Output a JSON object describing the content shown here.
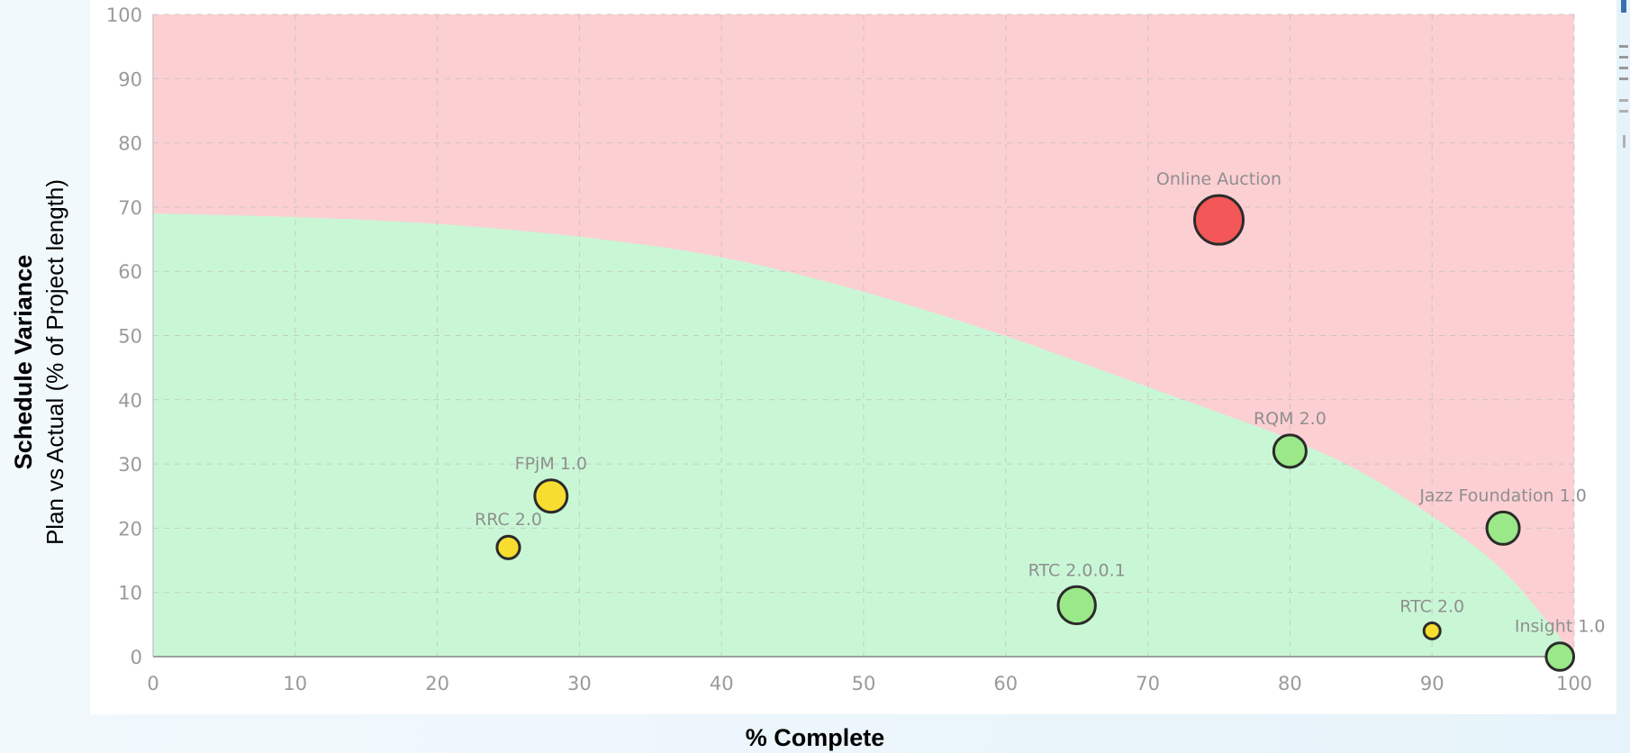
{
  "chart_data": {
    "type": "scatter",
    "title": "",
    "xlabel": "% Complete",
    "ylabel_bold": "Schedule Variance",
    "ylabel": "Plan vs Actual (% of Project length)",
    "xlim": [
      0,
      100
    ],
    "ylim": [
      0,
      100
    ],
    "xticks": [
      "0",
      "10",
      "20",
      "30",
      "40",
      "50",
      "60",
      "70",
      "80",
      "90",
      "100"
    ],
    "yticks": [
      "0",
      "10",
      "20",
      "30",
      "40",
      "50",
      "60",
      "70",
      "80",
      "90",
      "100"
    ],
    "grid": true,
    "zones": {
      "danger_color": "#fccfd3",
      "safe_color": "#c9f7d6",
      "boundary": [
        [
          0,
          69
        ],
        [
          10,
          68.5
        ],
        [
          20,
          67.5
        ],
        [
          30,
          65.5
        ],
        [
          40,
          62.5
        ],
        [
          50,
          57
        ],
        [
          60,
          50
        ],
        [
          65,
          46
        ],
        [
          70,
          42
        ],
        [
          75,
          38
        ],
        [
          80,
          34
        ],
        [
          85,
          29
        ],
        [
          90,
          22
        ],
        [
          95,
          14
        ],
        [
          99,
          3
        ]
      ]
    },
    "points": [
      {
        "label": "Online Auction",
        "x": 75,
        "y": 68,
        "size": 3,
        "color": "#f35757"
      },
      {
        "label": "RQM 2.0",
        "x": 80,
        "y": 32,
        "size": 2,
        "color": "#9ae888"
      },
      {
        "label": "Jazz Foundation 1.0",
        "x": 95,
        "y": 20,
        "size": 2,
        "color": "#9ae888"
      },
      {
        "label": "RTC 2.0.0.1",
        "x": 65,
        "y": 8,
        "size": 2.3,
        "color": "#9ae888"
      },
      {
        "label": "RTC 2.0",
        "x": 90,
        "y": 4,
        "size": 1,
        "color": "#f7dd2f"
      },
      {
        "label": "Insight 1.0",
        "x": 99,
        "y": 0,
        "size": 1.7,
        "color": "#9ae888"
      },
      {
        "label": "FPjM 1.0",
        "x": 28,
        "y": 25,
        "size": 2,
        "color": "#f7dd2f"
      },
      {
        "label": "RRC 2.0",
        "x": 25,
        "y": 17,
        "size": 1.4,
        "color": "#f7dd2f"
      }
    ]
  }
}
